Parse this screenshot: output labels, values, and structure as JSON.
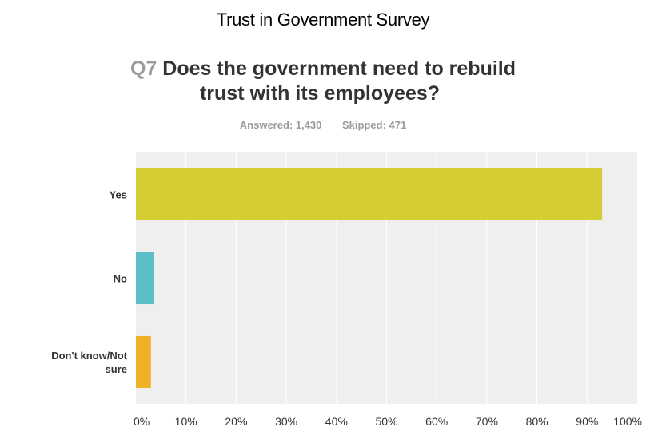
{
  "survey_title": "Trust in Government Survey",
  "question": {
    "number": "Q7",
    "line1": "Does the government need to rebuild",
    "line2": "trust with its employees?"
  },
  "counts": {
    "answered": "Answered: 1,430",
    "skipped": "Skipped: 471"
  },
  "colors": {
    "yes": "#d4cd33",
    "no": "#5bbec6",
    "dont_know": "#f0b127",
    "plot_background": "#efefef",
    "gridline": "#ffffff"
  },
  "chart_data": {
    "type": "bar",
    "orientation": "horizontal",
    "title": "Q7 Does the government need to rebuild trust with its employees?",
    "categories": [
      {
        "lines": [
          "Yes"
        ],
        "value": 93,
        "color": "#d4cd33"
      },
      {
        "lines": [
          "No"
        ],
        "value": 3.5,
        "color": "#5bbec6"
      },
      {
        "lines": [
          "Don't know/Not",
          "sure"
        ],
        "value": 3,
        "color": "#f0b127"
      }
    ],
    "xlim": [
      0,
      100
    ],
    "tick_labels": [
      "0%",
      "10%",
      "20%",
      "30%",
      "40%",
      "50%",
      "60%",
      "70%",
      "80%",
      "90%",
      "100%"
    ],
    "grid": true
  }
}
